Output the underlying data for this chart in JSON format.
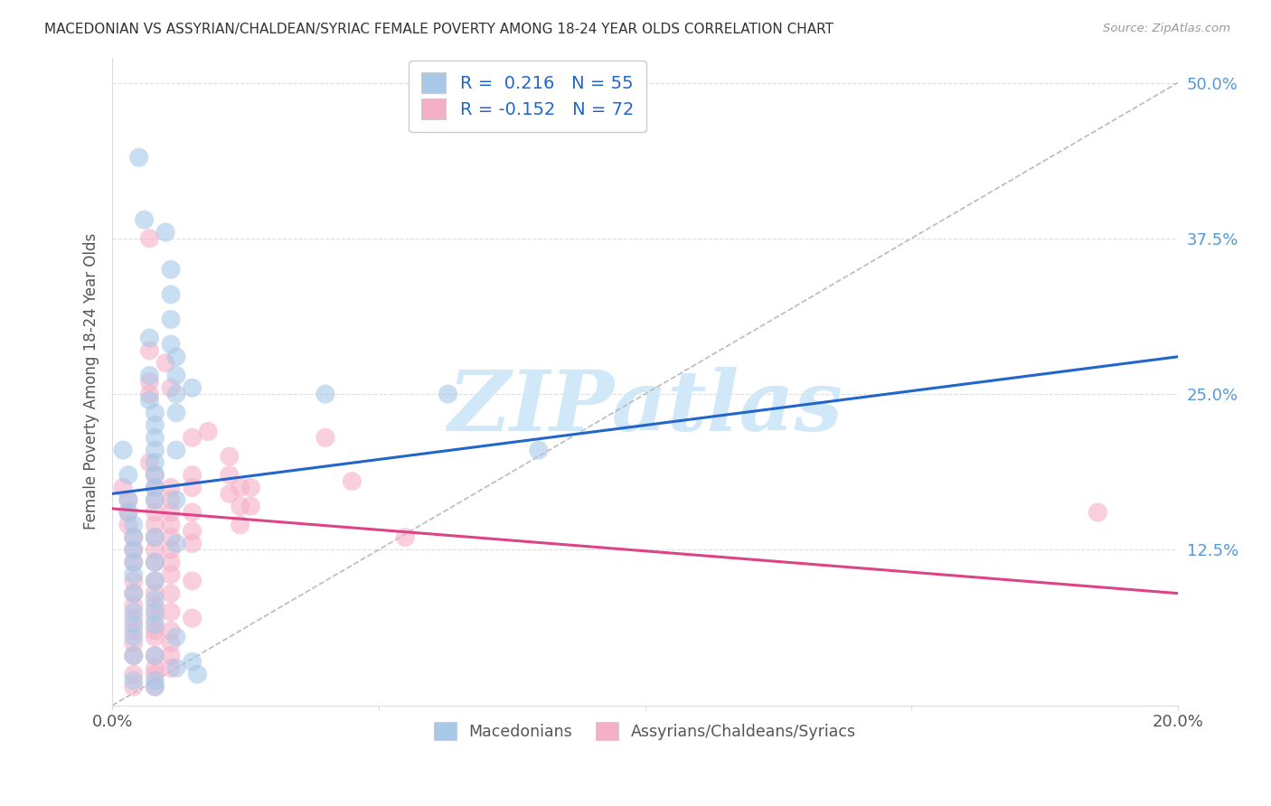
{
  "title": "MACEDONIAN VS ASSYRIAN/CHALDEAN/SYRIAC FEMALE POVERTY AMONG 18-24 YEAR OLDS CORRELATION CHART",
  "source": "Source: ZipAtlas.com",
  "ylabel": "Female Poverty Among 18-24 Year Olds",
  "xmin": 0.0,
  "xmax": 0.2,
  "ymin": 0.0,
  "ymax": 0.52,
  "blue_color": "#a8c8e8",
  "pink_color": "#f5b0c8",
  "blue_line_color": "#2266cc",
  "pink_line_color": "#dd4488",
  "dash_color": "#bbbbbb",
  "watermark": "ZIPatlas",
  "watermark_color": "#d0e8f8",
  "blue_scatter": [
    [
      0.002,
      0.205
    ],
    [
      0.003,
      0.185
    ],
    [
      0.003,
      0.165
    ],
    [
      0.003,
      0.155
    ],
    [
      0.004,
      0.145
    ],
    [
      0.004,
      0.135
    ],
    [
      0.004,
      0.125
    ],
    [
      0.004,
      0.115
    ],
    [
      0.004,
      0.105
    ],
    [
      0.004,
      0.09
    ],
    [
      0.004,
      0.075
    ],
    [
      0.004,
      0.065
    ],
    [
      0.004,
      0.055
    ],
    [
      0.004,
      0.04
    ],
    [
      0.004,
      0.02
    ],
    [
      0.005,
      0.44
    ],
    [
      0.006,
      0.39
    ],
    [
      0.007,
      0.295
    ],
    [
      0.007,
      0.265
    ],
    [
      0.007,
      0.245
    ],
    [
      0.008,
      0.235
    ],
    [
      0.008,
      0.225
    ],
    [
      0.008,
      0.215
    ],
    [
      0.008,
      0.205
    ],
    [
      0.008,
      0.195
    ],
    [
      0.008,
      0.185
    ],
    [
      0.008,
      0.175
    ],
    [
      0.008,
      0.165
    ],
    [
      0.008,
      0.135
    ],
    [
      0.008,
      0.115
    ],
    [
      0.008,
      0.1
    ],
    [
      0.008,
      0.085
    ],
    [
      0.008,
      0.075
    ],
    [
      0.008,
      0.065
    ],
    [
      0.008,
      0.04
    ],
    [
      0.008,
      0.02
    ],
    [
      0.008,
      0.015
    ],
    [
      0.01,
      0.38
    ],
    [
      0.011,
      0.35
    ],
    [
      0.011,
      0.33
    ],
    [
      0.011,
      0.31
    ],
    [
      0.011,
      0.29
    ],
    [
      0.012,
      0.28
    ],
    [
      0.012,
      0.265
    ],
    [
      0.012,
      0.25
    ],
    [
      0.012,
      0.235
    ],
    [
      0.012,
      0.205
    ],
    [
      0.012,
      0.165
    ],
    [
      0.012,
      0.13
    ],
    [
      0.012,
      0.055
    ],
    [
      0.012,
      0.03
    ],
    [
      0.015,
      0.255
    ],
    [
      0.015,
      0.035
    ],
    [
      0.016,
      0.025
    ],
    [
      0.04,
      0.25
    ],
    [
      0.063,
      0.25
    ],
    [
      0.08,
      0.205
    ]
  ],
  "pink_scatter": [
    [
      0.002,
      0.175
    ],
    [
      0.003,
      0.165
    ],
    [
      0.003,
      0.155
    ],
    [
      0.003,
      0.145
    ],
    [
      0.004,
      0.135
    ],
    [
      0.004,
      0.125
    ],
    [
      0.004,
      0.115
    ],
    [
      0.004,
      0.1
    ],
    [
      0.004,
      0.09
    ],
    [
      0.004,
      0.08
    ],
    [
      0.004,
      0.07
    ],
    [
      0.004,
      0.06
    ],
    [
      0.004,
      0.05
    ],
    [
      0.004,
      0.04
    ],
    [
      0.004,
      0.025
    ],
    [
      0.004,
      0.015
    ],
    [
      0.007,
      0.375
    ],
    [
      0.007,
      0.285
    ],
    [
      0.007,
      0.26
    ],
    [
      0.007,
      0.25
    ],
    [
      0.007,
      0.195
    ],
    [
      0.008,
      0.185
    ],
    [
      0.008,
      0.175
    ],
    [
      0.008,
      0.165
    ],
    [
      0.008,
      0.155
    ],
    [
      0.008,
      0.145
    ],
    [
      0.008,
      0.135
    ],
    [
      0.008,
      0.125
    ],
    [
      0.008,
      0.115
    ],
    [
      0.008,
      0.1
    ],
    [
      0.008,
      0.09
    ],
    [
      0.008,
      0.08
    ],
    [
      0.008,
      0.07
    ],
    [
      0.008,
      0.06
    ],
    [
      0.008,
      0.055
    ],
    [
      0.008,
      0.04
    ],
    [
      0.008,
      0.03
    ],
    [
      0.008,
      0.025
    ],
    [
      0.008,
      0.015
    ],
    [
      0.01,
      0.275
    ],
    [
      0.011,
      0.255
    ],
    [
      0.011,
      0.175
    ],
    [
      0.011,
      0.165
    ],
    [
      0.011,
      0.155
    ],
    [
      0.011,
      0.145
    ],
    [
      0.011,
      0.135
    ],
    [
      0.011,
      0.125
    ],
    [
      0.011,
      0.115
    ],
    [
      0.011,
      0.105
    ],
    [
      0.011,
      0.09
    ],
    [
      0.011,
      0.075
    ],
    [
      0.011,
      0.06
    ],
    [
      0.011,
      0.05
    ],
    [
      0.011,
      0.04
    ],
    [
      0.011,
      0.03
    ],
    [
      0.015,
      0.215
    ],
    [
      0.015,
      0.185
    ],
    [
      0.015,
      0.175
    ],
    [
      0.015,
      0.155
    ],
    [
      0.015,
      0.14
    ],
    [
      0.015,
      0.13
    ],
    [
      0.015,
      0.1
    ],
    [
      0.015,
      0.07
    ],
    [
      0.018,
      0.22
    ],
    [
      0.022,
      0.2
    ],
    [
      0.022,
      0.185
    ],
    [
      0.022,
      0.17
    ],
    [
      0.024,
      0.175
    ],
    [
      0.024,
      0.16
    ],
    [
      0.024,
      0.145
    ],
    [
      0.026,
      0.175
    ],
    [
      0.026,
      0.16
    ],
    [
      0.04,
      0.215
    ],
    [
      0.045,
      0.18
    ],
    [
      0.055,
      0.135
    ],
    [
      0.185,
      0.155
    ]
  ],
  "blue_line_x": [
    0.0,
    0.2
  ],
  "blue_line_y": [
    0.17,
    0.28
  ],
  "pink_line_x": [
    0.0,
    0.2
  ],
  "pink_line_y": [
    0.158,
    0.09
  ],
  "dash_line_x": [
    0.0,
    0.2
  ],
  "dash_line_y": [
    0.0,
    0.5
  ]
}
